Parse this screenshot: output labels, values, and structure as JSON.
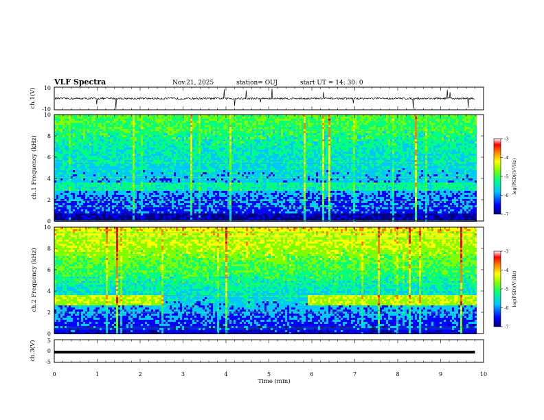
{
  "header": {
    "title": "VLF Spectra",
    "date": "Nov.21, 2025",
    "station": "station= OUJ",
    "start_time": "start  UT =   14: 30: 0"
  },
  "colors": {
    "colormap": [
      "#000080",
      "#0000ff",
      "#00c8ff",
      "#00ff80",
      "#80ff00",
      "#ffff00",
      "#ff8000",
      "#ff0000",
      "#ffffff"
    ]
  },
  "chart_data": [
    {
      "type": "line",
      "panel": "ch1-waveform",
      "ylabel": "ch.1(V)",
      "ylim": [
        -10,
        10
      ],
      "yticks": [
        "10",
        "-10"
      ],
      "x_range": [
        0,
        10
      ],
      "description_values": {
        "baseline": 0,
        "occasional_spikes_max": 10
      }
    },
    {
      "type": "heatmap",
      "panel": "ch1-spectrogram",
      "ylabel": "ch.1 Frequency (kHz)",
      "ylim": [
        0,
        10
      ],
      "yticks": [
        "0",
        "2",
        "4",
        "6",
        "8",
        "10"
      ],
      "x_range": [
        0,
        10
      ],
      "colorbar": {
        "label": "log(PSD)(V²/Hz)",
        "range": [
          -7,
          -3
        ],
        "ticks": [
          "-3",
          "-4",
          "-5",
          "-6",
          "-7"
        ]
      }
    },
    {
      "type": "heatmap",
      "panel": "ch2-spectrogram",
      "ylabel": "ch.2 Frequency (kHz)",
      "ylim": [
        0,
        10
      ],
      "yticks": [
        "0",
        "2",
        "4",
        "6",
        "8",
        "10"
      ],
      "x_range": [
        0,
        10
      ],
      "colorbar": {
        "label": "log(PSD)(V²/Hz)",
        "range": [
          -7,
          -3
        ],
        "ticks": [
          "-3",
          "-4",
          "-5",
          "-6",
          "-7"
        ]
      }
    },
    {
      "type": "line",
      "panel": "ch3-waveform",
      "ylabel": "ch.3(V)",
      "ylim": [
        -5,
        5
      ],
      "yticks": [
        "5",
        "0",
        "-5"
      ],
      "x_range": [
        0,
        10
      ],
      "values": {
        "constant": -0.5
      }
    }
  ],
  "xaxis": {
    "label": "Time  (min)",
    "ticks": [
      "0",
      "1",
      "2",
      "3",
      "4",
      "5",
      "6",
      "7",
      "8",
      "9",
      "10"
    ],
    "range": [
      0,
      10
    ],
    "data_end": 9.8
  }
}
